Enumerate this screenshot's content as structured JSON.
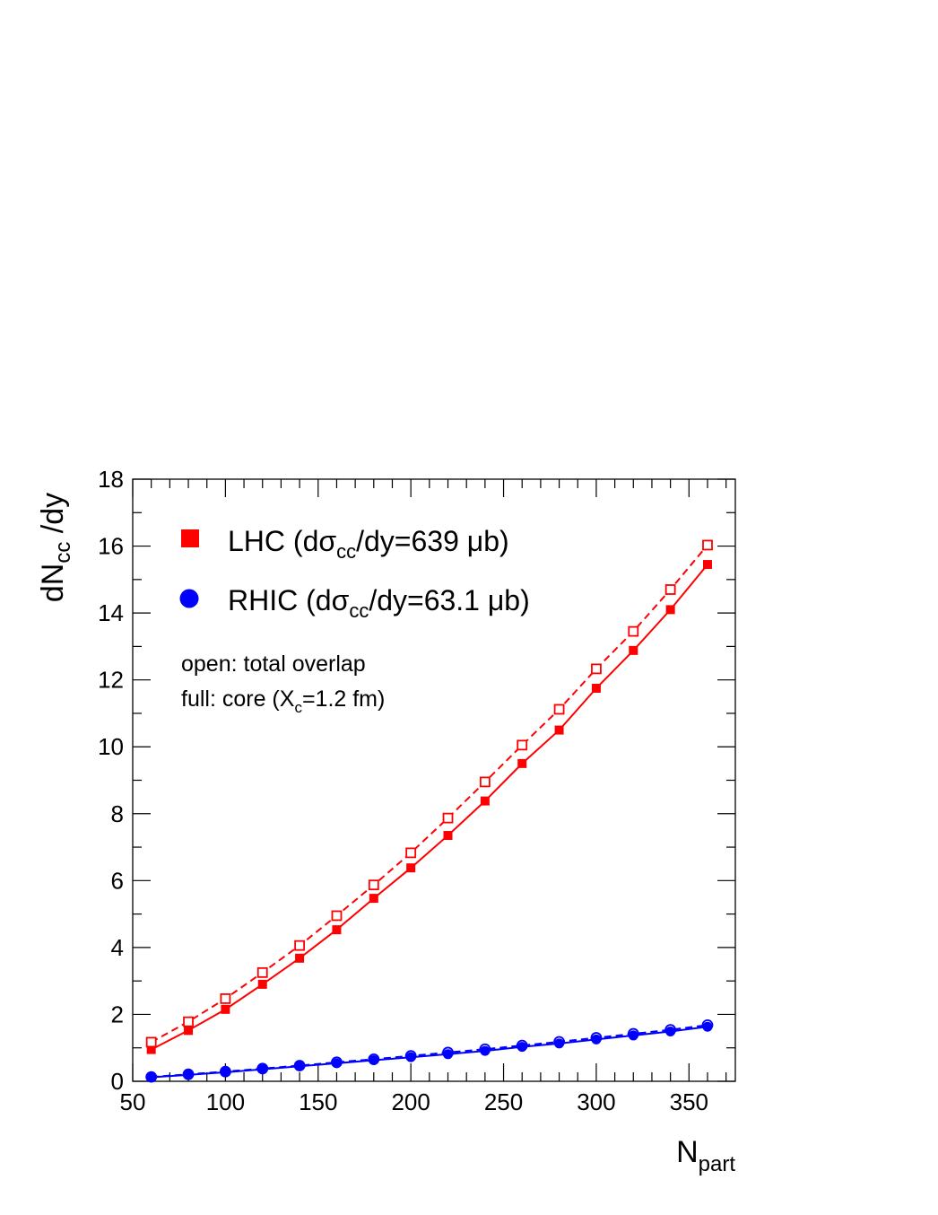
{
  "chart_data": {
    "type": "line",
    "xlabel": "N",
    "xlabel_sub": "part",
    "ylabel_pre": "dN",
    "ylabel_sub": "cc",
    "ylabel_post": " /dy",
    "xlim": [
      50,
      375
    ],
    "ylim": [
      0,
      18
    ],
    "x_ticks": [
      50,
      100,
      150,
      200,
      250,
      300,
      350
    ],
    "y_ticks": [
      0,
      2,
      4,
      6,
      8,
      10,
      12,
      14,
      16,
      18
    ],
    "grid": false,
    "x": [
      60,
      80,
      100,
      120,
      140,
      160,
      180,
      200,
      220,
      240,
      260,
      280,
      300,
      320,
      340,
      360
    ],
    "series": [
      {
        "key": "lhc_core",
        "marker": "square-filled",
        "line": "solid",
        "color": "#ff0000",
        "values": [
          0.95,
          1.52,
          2.15,
          2.9,
          3.68,
          4.53,
          5.47,
          6.38,
          7.35,
          8.38,
          9.5,
          10.5,
          11.75,
          12.88,
          14.1,
          15.45
        ]
      },
      {
        "key": "lhc_total",
        "marker": "square-open",
        "line": "dashed",
        "color": "#ff0000",
        "values": [
          1.17,
          1.78,
          2.47,
          3.25,
          4.06,
          4.95,
          5.87,
          6.83,
          7.87,
          8.95,
          10.05,
          11.12,
          12.33,
          13.45,
          14.7,
          16.03
        ]
      },
      {
        "key": "rhic_core",
        "marker": "circle-filled",
        "line": "solid",
        "color": "#0000ff",
        "values": [
          0.12,
          0.19,
          0.27,
          0.36,
          0.45,
          0.54,
          0.63,
          0.72,
          0.81,
          0.91,
          1.03,
          1.13,
          1.25,
          1.37,
          1.49,
          1.63
        ]
      },
      {
        "key": "rhic_total",
        "marker": "circle-open",
        "line": "dashed",
        "color": "#0000ff",
        "values": [
          0.13,
          0.21,
          0.29,
          0.38,
          0.47,
          0.57,
          0.66,
          0.76,
          0.86,
          0.96,
          1.07,
          1.18,
          1.3,
          1.42,
          1.54,
          1.68
        ]
      }
    ],
    "legend": {
      "placement": "top-left",
      "entries": [
        {
          "marker": "square-filled",
          "color": "#ff0000",
          "pre": "LHC (d",
          "sigma": "σ",
          "sub": "cc",
          "post": "/dy=639 μb)"
        },
        {
          "marker": "circle-filled",
          "color": "#0000ff",
          "pre": "RHIC (d",
          "sigma": "σ",
          "sub": "cc",
          "post": "/dy=63.1 μb)"
        }
      ],
      "note_line1": "open: total overlap",
      "note_line2_pre": "full: core (X",
      "note_line2_sub": "c",
      "note_line2_post": "=1.2 fm)"
    }
  }
}
